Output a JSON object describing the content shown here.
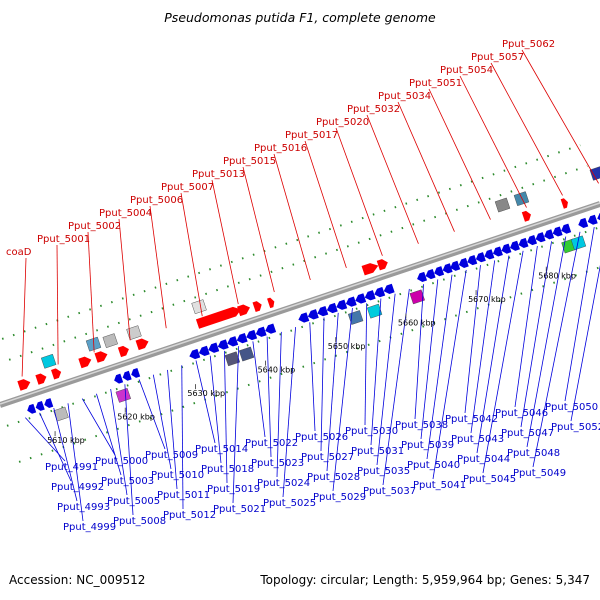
{
  "title": "Pseudomonas putida F1, complete genome",
  "footer": {
    "accession": "Accession: NC_009512",
    "summary": "Topology: circular; Length: 5,959,964 bp; Genes: 5,347"
  },
  "colors": {
    "forward_label": "#cc0000",
    "reverse_label": "#0000cc",
    "forward_gene": "#ff0000",
    "reverse_gene": "#0000dd",
    "backbone": "#8a8a8a",
    "tick": "#228b22"
  },
  "ticks": [
    "5610 kbp",
    "5620 kbp",
    "5630 kbp",
    "5640 kbp",
    "5650 kbp",
    "5660 kbp",
    "5670 kbp",
    "5680 kbp"
  ],
  "forward_labels": [
    "coaD",
    "Pput_5001",
    "Pput_5002",
    "Pput_5004",
    "Pput_5006",
    "Pput_5007",
    "Pput_5013",
    "Pput_5015",
    "Pput_5016",
    "Pput_5017",
    "Pput_5020",
    "Pput_5032",
    "Pput_5034",
    "Pput_5051",
    "Pput_5054",
    "Pput_5057",
    "Pput_5062"
  ],
  "reverse_labels": [
    "Pput_4991",
    "Pput_4992",
    "Pput_4993",
    "Pput_4999",
    "Pput_5000",
    "Pput_5003",
    "Pput_5005",
    "Pput_5008",
    "Pput_5009",
    "Pput_5010",
    "Pput_5011",
    "Pput_5012",
    "Pput_5014",
    "Pput_5018",
    "Pput_5019",
    "Pput_5021",
    "Pput_5022",
    "Pput_5023",
    "Pput_5024",
    "Pput_5025",
    "Pput_5026",
    "Pput_5027",
    "Pput_5028",
    "Pput_5029",
    "Pput_5030",
    "Pput_5031",
    "Pput_5035",
    "Pput_5037",
    "Pput_5038",
    "Pput_5039",
    "Pput_5040",
    "Pput_5041",
    "Pput_5042",
    "Pput_5043",
    "Pput_5044",
    "Pput_5045",
    "Pput_5046",
    "Pput_5047",
    "Pput_5048",
    "Pput_5049",
    "Pput_5050",
    "Pput_5052"
  ]
}
